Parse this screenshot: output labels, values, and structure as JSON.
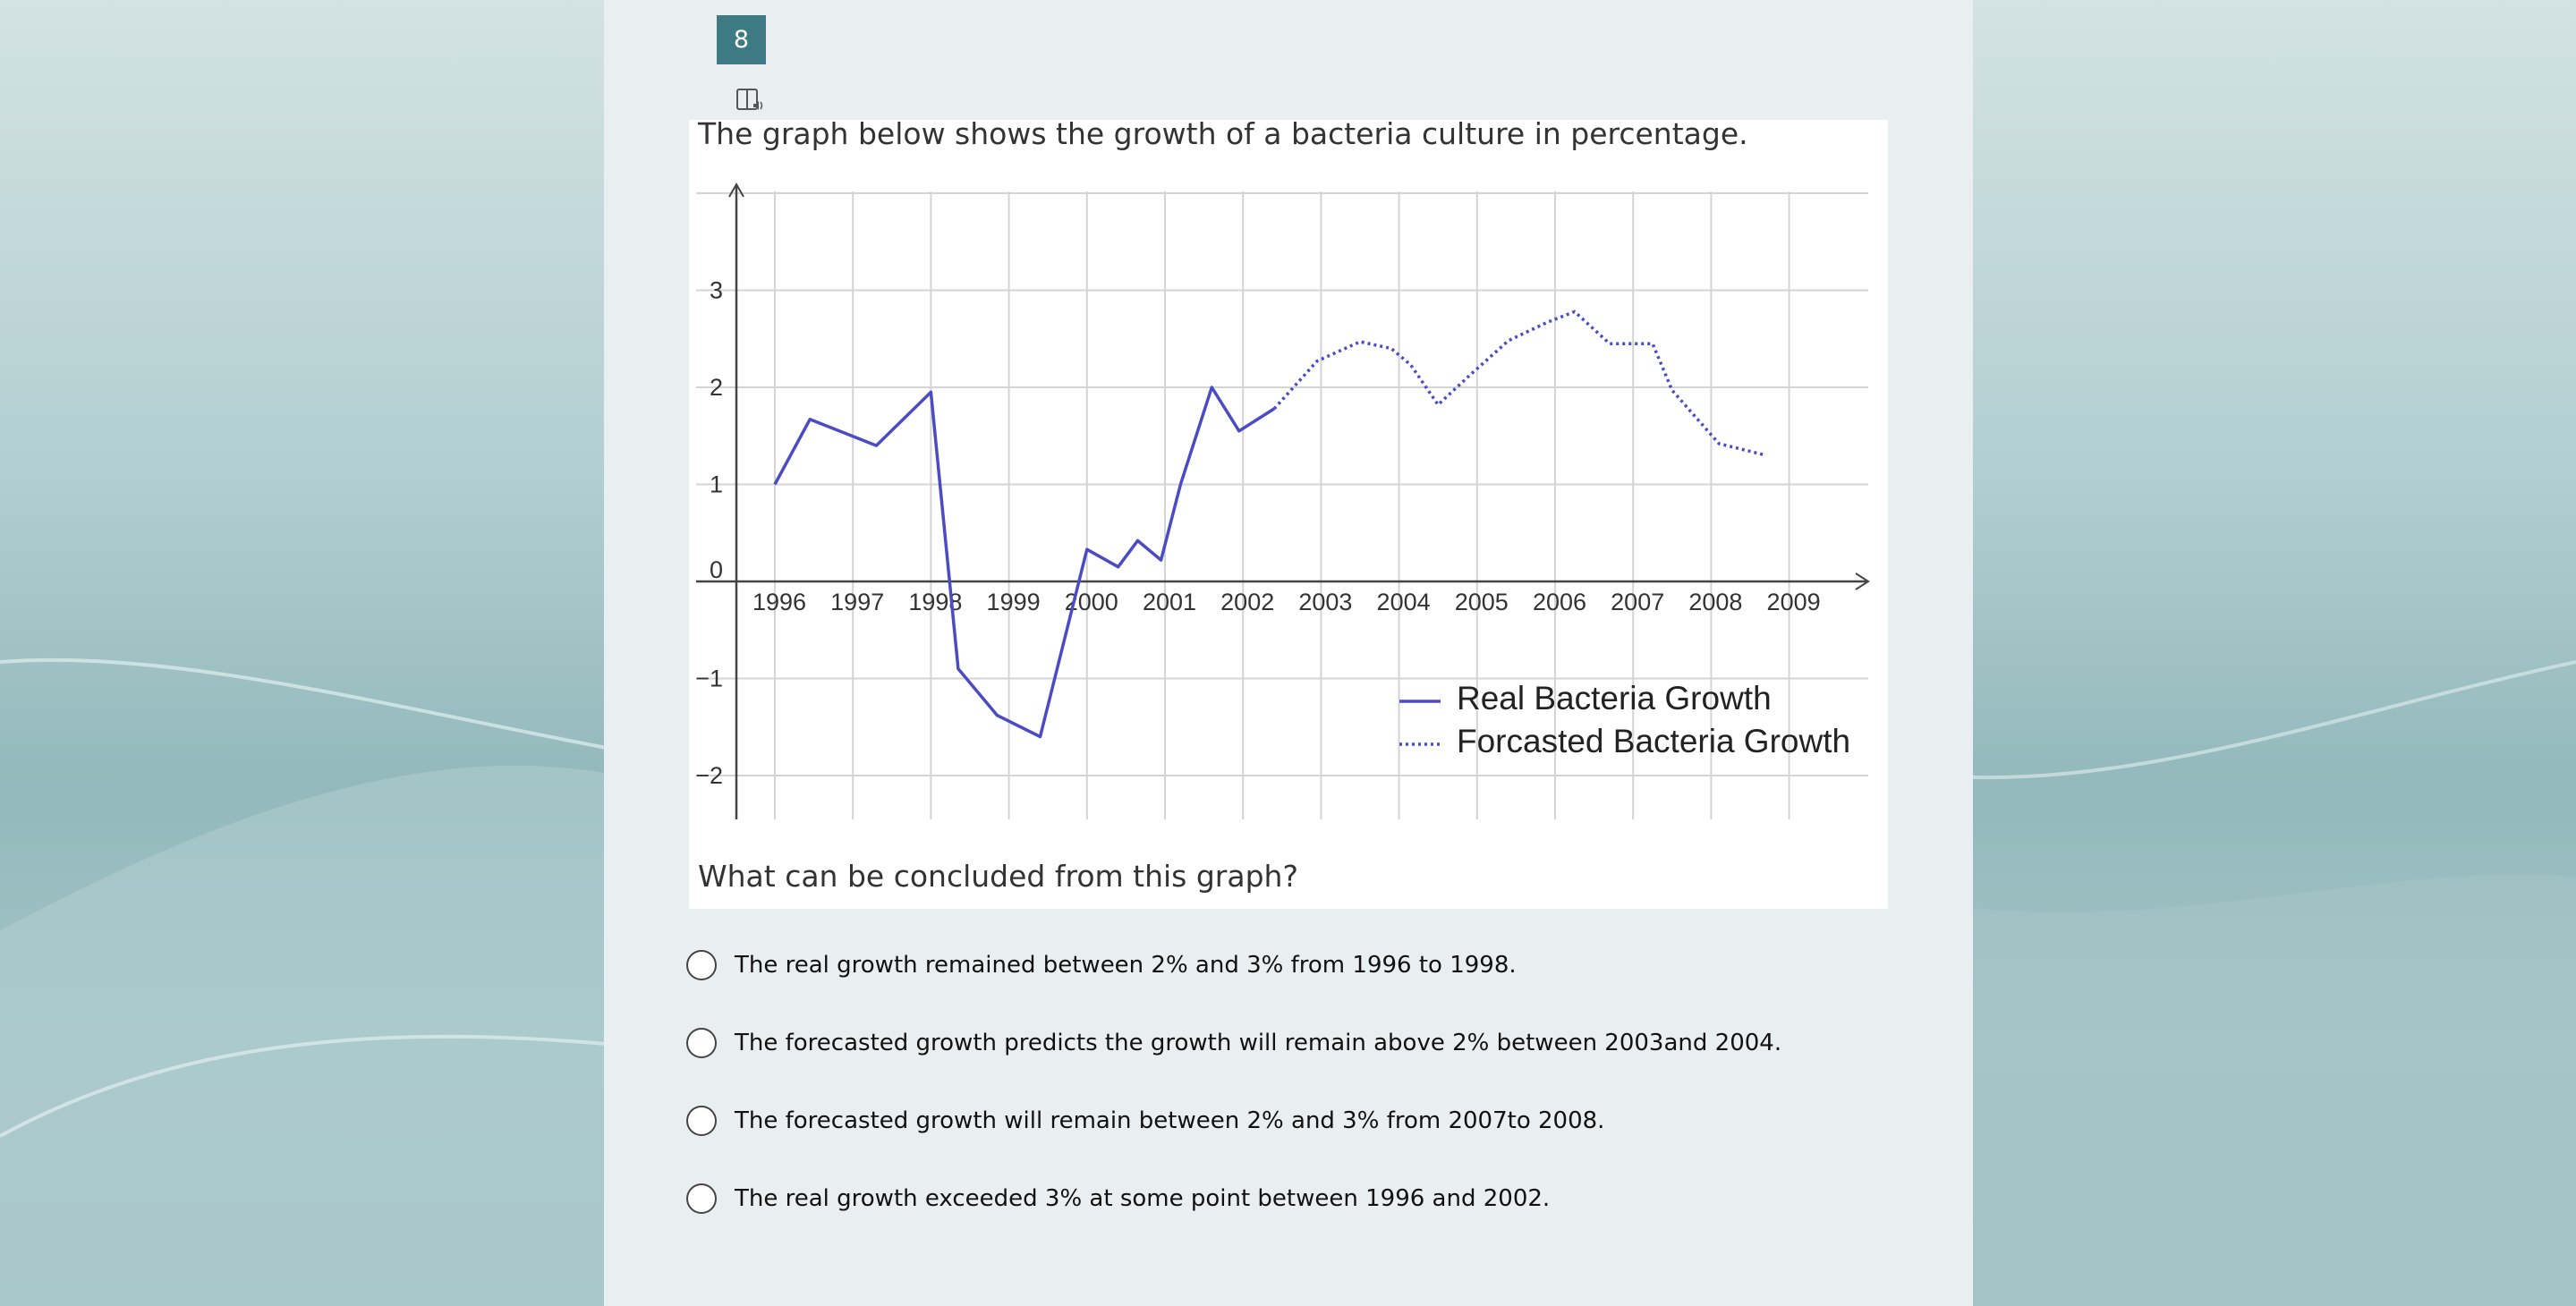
{
  "question": {
    "number": "8",
    "prompt": "The graph below shows the growth of a bacteria culture in percentage.",
    "sub_prompt": "What can be concluded from this graph?"
  },
  "options": [
    {
      "label": "The real growth remained between 2% and 3% from 1996 to 1998."
    },
    {
      "label": "The forecasted growth predicts the growth will remain above 2% between 2003and 2004."
    },
    {
      "label": "The forecasted growth will remain between 2% and 3% from 2007to 2008."
    },
    {
      "label": "The real growth exceeded 3% at some point between 1996 and 2002."
    }
  ],
  "colors": {
    "accent": "#3d7a84",
    "series": "#4b4bc4",
    "grid": "#d4d4d4"
  },
  "chart_data": {
    "type": "line",
    "title": "",
    "xlabel": "",
    "ylabel": "",
    "x_ticks": [
      "1996",
      "1997",
      "1998",
      "1999",
      "2000",
      "2001",
      "2002",
      "2003",
      "2004",
      "2005",
      "2006",
      "2007",
      "2008",
      "2009"
    ],
    "y_ticks": [
      "3",
      "2",
      "1",
      "0",
      "−1",
      "−2"
    ],
    "xlim": [
      1995.5,
      2009.5
    ],
    "ylim": [
      -2.5,
      4.0
    ],
    "grid": true,
    "legend_position": "bottom-right",
    "series": [
      {
        "name": "Real Bacteria Growth",
        "style": "solid",
        "points": [
          [
            1996,
            1.0
          ],
          [
            1996.45,
            1.67
          ],
          [
            1997.3,
            1.4
          ],
          [
            1998.0,
            1.95
          ],
          [
            1998.35,
            -0.9
          ],
          [
            1998.85,
            -1.38
          ],
          [
            1999.4,
            -1.6
          ],
          [
            2000.0,
            0.33
          ],
          [
            2000.4,
            0.15
          ],
          [
            2000.65,
            0.42
          ],
          [
            2000.95,
            0.22
          ],
          [
            2001.2,
            1.0
          ],
          [
            2001.6,
            2.0
          ],
          [
            2001.95,
            1.55
          ],
          [
            2002.4,
            1.78
          ]
        ]
      },
      {
        "name": "Forcasted Bacteria Growth",
        "style": "dotted",
        "points": [
          [
            2002.4,
            1.78
          ],
          [
            2002.95,
            2.27
          ],
          [
            2003.5,
            2.47
          ],
          [
            2003.9,
            2.4
          ],
          [
            2004.15,
            2.23
          ],
          [
            2004.5,
            1.82
          ],
          [
            2004.9,
            2.12
          ],
          [
            2005.4,
            2.48
          ],
          [
            2005.9,
            2.67
          ],
          [
            2006.25,
            2.78
          ],
          [
            2006.7,
            2.45
          ],
          [
            2007.25,
            2.45
          ],
          [
            2007.5,
            1.97
          ],
          [
            2008.1,
            1.42
          ],
          [
            2008.7,
            1.3
          ]
        ]
      }
    ]
  }
}
